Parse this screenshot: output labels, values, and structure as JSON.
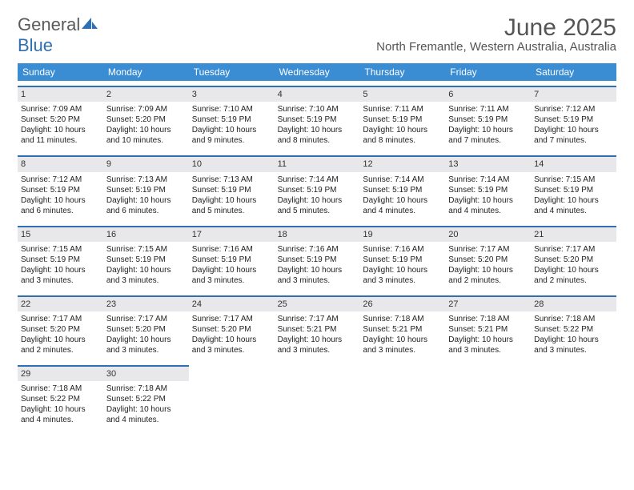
{
  "logo": {
    "text1": "General",
    "text2": "Blue"
  },
  "title": "June 2025",
  "subtitle": "North Fremantle, Western Australia, Australia",
  "colors": {
    "header_bg": "#3a8cd3",
    "day_header_bg": "#e8e8ea",
    "day_header_border": "#2f6fb3",
    "title_color": "#555555",
    "text_color": "#222222",
    "logo_gray": "#5a5a5a",
    "logo_blue": "#2f6fb3"
  },
  "typography": {
    "title_fontsize": 30,
    "subtitle_fontsize": 15,
    "dow_fontsize": 12,
    "daynum_fontsize": 11,
    "body_fontsize": 10
  },
  "days_of_week": [
    "Sunday",
    "Monday",
    "Tuesday",
    "Wednesday",
    "Thursday",
    "Friday",
    "Saturday"
  ],
  "weeks": [
    [
      {
        "n": "1",
        "sr": "7:09 AM",
        "ss": "5:20 PM",
        "dl1": "Daylight: 10 hours",
        "dl2": "and 11 minutes."
      },
      {
        "n": "2",
        "sr": "7:09 AM",
        "ss": "5:20 PM",
        "dl1": "Daylight: 10 hours",
        "dl2": "and 10 minutes."
      },
      {
        "n": "3",
        "sr": "7:10 AM",
        "ss": "5:19 PM",
        "dl1": "Daylight: 10 hours",
        "dl2": "and 9 minutes."
      },
      {
        "n": "4",
        "sr": "7:10 AM",
        "ss": "5:19 PM",
        "dl1": "Daylight: 10 hours",
        "dl2": "and 8 minutes."
      },
      {
        "n": "5",
        "sr": "7:11 AM",
        "ss": "5:19 PM",
        "dl1": "Daylight: 10 hours",
        "dl2": "and 8 minutes."
      },
      {
        "n": "6",
        "sr": "7:11 AM",
        "ss": "5:19 PM",
        "dl1": "Daylight: 10 hours",
        "dl2": "and 7 minutes."
      },
      {
        "n": "7",
        "sr": "7:12 AM",
        "ss": "5:19 PM",
        "dl1": "Daylight: 10 hours",
        "dl2": "and 7 minutes."
      }
    ],
    [
      {
        "n": "8",
        "sr": "7:12 AM",
        "ss": "5:19 PM",
        "dl1": "Daylight: 10 hours",
        "dl2": "and 6 minutes."
      },
      {
        "n": "9",
        "sr": "7:13 AM",
        "ss": "5:19 PM",
        "dl1": "Daylight: 10 hours",
        "dl2": "and 6 minutes."
      },
      {
        "n": "10",
        "sr": "7:13 AM",
        "ss": "5:19 PM",
        "dl1": "Daylight: 10 hours",
        "dl2": "and 5 minutes."
      },
      {
        "n": "11",
        "sr": "7:14 AM",
        "ss": "5:19 PM",
        "dl1": "Daylight: 10 hours",
        "dl2": "and 5 minutes."
      },
      {
        "n": "12",
        "sr": "7:14 AM",
        "ss": "5:19 PM",
        "dl1": "Daylight: 10 hours",
        "dl2": "and 4 minutes."
      },
      {
        "n": "13",
        "sr": "7:14 AM",
        "ss": "5:19 PM",
        "dl1": "Daylight: 10 hours",
        "dl2": "and 4 minutes."
      },
      {
        "n": "14",
        "sr": "7:15 AM",
        "ss": "5:19 PM",
        "dl1": "Daylight: 10 hours",
        "dl2": "and 4 minutes."
      }
    ],
    [
      {
        "n": "15",
        "sr": "7:15 AM",
        "ss": "5:19 PM",
        "dl1": "Daylight: 10 hours",
        "dl2": "and 3 minutes."
      },
      {
        "n": "16",
        "sr": "7:15 AM",
        "ss": "5:19 PM",
        "dl1": "Daylight: 10 hours",
        "dl2": "and 3 minutes."
      },
      {
        "n": "17",
        "sr": "7:16 AM",
        "ss": "5:19 PM",
        "dl1": "Daylight: 10 hours",
        "dl2": "and 3 minutes."
      },
      {
        "n": "18",
        "sr": "7:16 AM",
        "ss": "5:19 PM",
        "dl1": "Daylight: 10 hours",
        "dl2": "and 3 minutes."
      },
      {
        "n": "19",
        "sr": "7:16 AM",
        "ss": "5:19 PM",
        "dl1": "Daylight: 10 hours",
        "dl2": "and 3 minutes."
      },
      {
        "n": "20",
        "sr": "7:17 AM",
        "ss": "5:20 PM",
        "dl1": "Daylight: 10 hours",
        "dl2": "and 2 minutes."
      },
      {
        "n": "21",
        "sr": "7:17 AM",
        "ss": "5:20 PM",
        "dl1": "Daylight: 10 hours",
        "dl2": "and 2 minutes."
      }
    ],
    [
      {
        "n": "22",
        "sr": "7:17 AM",
        "ss": "5:20 PM",
        "dl1": "Daylight: 10 hours",
        "dl2": "and 2 minutes."
      },
      {
        "n": "23",
        "sr": "7:17 AM",
        "ss": "5:20 PM",
        "dl1": "Daylight: 10 hours",
        "dl2": "and 3 minutes."
      },
      {
        "n": "24",
        "sr": "7:17 AM",
        "ss": "5:20 PM",
        "dl1": "Daylight: 10 hours",
        "dl2": "and 3 minutes."
      },
      {
        "n": "25",
        "sr": "7:17 AM",
        "ss": "5:21 PM",
        "dl1": "Daylight: 10 hours",
        "dl2": "and 3 minutes."
      },
      {
        "n": "26",
        "sr": "7:18 AM",
        "ss": "5:21 PM",
        "dl1": "Daylight: 10 hours",
        "dl2": "and 3 minutes."
      },
      {
        "n": "27",
        "sr": "7:18 AM",
        "ss": "5:21 PM",
        "dl1": "Daylight: 10 hours",
        "dl2": "and 3 minutes."
      },
      {
        "n": "28",
        "sr": "7:18 AM",
        "ss": "5:22 PM",
        "dl1": "Daylight: 10 hours",
        "dl2": "and 3 minutes."
      }
    ],
    [
      {
        "n": "29",
        "sr": "7:18 AM",
        "ss": "5:22 PM",
        "dl1": "Daylight: 10 hours",
        "dl2": "and 4 minutes."
      },
      {
        "n": "30",
        "sr": "7:18 AM",
        "ss": "5:22 PM",
        "dl1": "Daylight: 10 hours",
        "dl2": "and 4 minutes."
      },
      null,
      null,
      null,
      null,
      null
    ]
  ]
}
